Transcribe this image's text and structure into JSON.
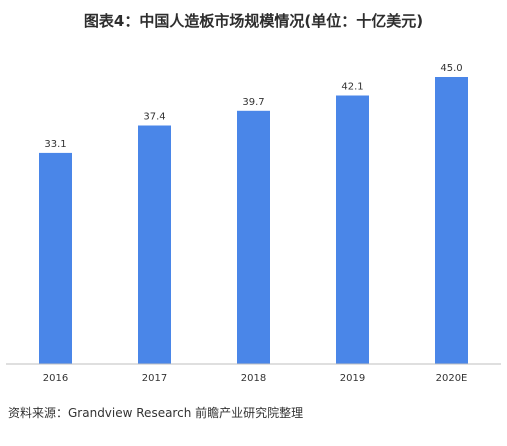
{
  "title": "图表4：中国人造板市场规模情况(单位：十亿美元)",
  "source": "资料来源：Grandview Research 前瞻产业研究院整理",
  "colors": {
    "bar": "#4a86e8",
    "axis": "#bfbfbf"
  },
  "chart_data": {
    "type": "bar",
    "title": "图表4：中国人造板市场规模情况(单位：十亿美元)",
    "categories": [
      "2016",
      "2017",
      "2018",
      "2019",
      "2020E"
    ],
    "values": [
      33.1,
      37.4,
      39.7,
      42.1,
      45.0
    ],
    "value_labels": [
      "33.1",
      "37.4",
      "39.7",
      "42.1",
      "45.0"
    ],
    "xlabel": "",
    "ylabel": "",
    "ylim": [
      0,
      45.0
    ],
    "grid": false,
    "legend": "none"
  }
}
